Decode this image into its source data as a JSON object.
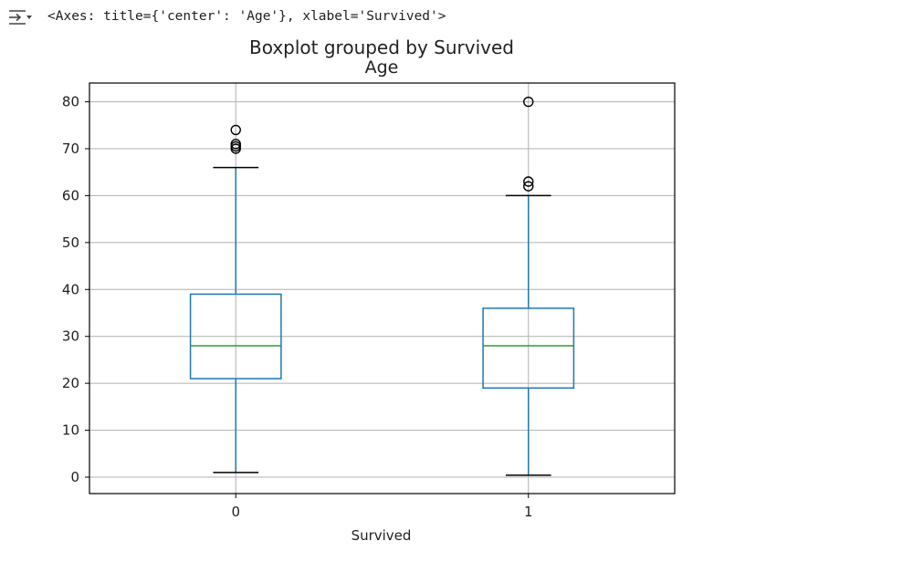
{
  "cell_output": {
    "text": "<Axes: title={'center': 'Age'}, xlabel='Survived'>"
  },
  "chart_data": {
    "type": "boxplot",
    "suptitle": "Boxplot grouped by Survived",
    "title": "Age",
    "xlabel": "Survived",
    "ylabel": "",
    "categories": [
      "0",
      "1"
    ],
    "ylim": [
      -3.5,
      84
    ],
    "yticks": [
      0,
      10,
      20,
      30,
      40,
      50,
      60,
      70,
      80
    ],
    "grid": true,
    "colors": {
      "box": "#1f77b4",
      "median": "#2ca02c",
      "cap": "#000000",
      "grid": "#b0b0b0",
      "flier": "#000000"
    },
    "boxes": [
      {
        "category": "0",
        "whisker_low": 1,
        "q1": 21,
        "median": 28,
        "q3": 39,
        "whisker_high": 66,
        "fliers": [
          70,
          70.5,
          71,
          74
        ]
      },
      {
        "category": "1",
        "whisker_low": 0.42,
        "q1": 19,
        "median": 28,
        "q3": 36,
        "whisker_high": 60,
        "fliers": [
          62,
          63,
          80
        ]
      }
    ]
  }
}
